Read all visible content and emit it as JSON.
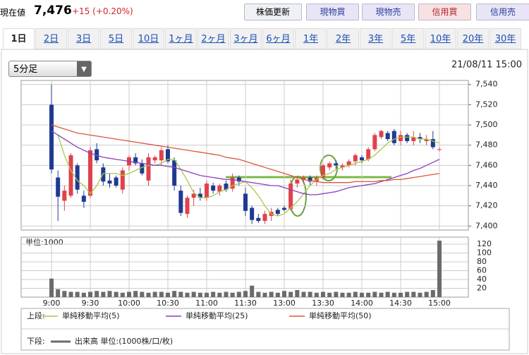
{
  "header": {
    "price_label": "現在値",
    "price": "7,476",
    "change": "+15 (+0.20%)",
    "buttons": [
      "株価更新",
      "現物買",
      "現物売",
      "信用買",
      "信用売"
    ]
  },
  "tabs": [
    "1日",
    "2日",
    "3日",
    "5日",
    "10日",
    "1ヶ月",
    "2ヶ月",
    "3ヶ月",
    "6ヶ月",
    "1年",
    "2年",
    "3年",
    "5年",
    "10年",
    "20年",
    "30年"
  ],
  "interval": "5分足",
  "datetime": "21/08/11 15:00",
  "legend": {
    "upper": "上段:",
    "lower": "下段:"
  },
  "chart_data": [
    {
      "type": "candlestick",
      "categories": [
        "9:00",
        null,
        null,
        null,
        null,
        null,
        "9:30",
        null,
        null,
        null,
        null,
        null,
        "10:00",
        null,
        null,
        null,
        null,
        null,
        "10:30",
        null,
        null,
        null,
        null,
        null,
        "11:00",
        null,
        null,
        null,
        null,
        null,
        "11:30",
        null,
        null,
        null,
        null,
        null,
        "13:00",
        null,
        null,
        null,
        null,
        null,
        "13:30",
        null,
        null,
        null,
        null,
        null,
        "14:00",
        null,
        null,
        null,
        null,
        null,
        "14:30",
        null,
        null,
        null,
        null,
        null,
        "15:00"
      ],
      "open": [
        7520,
        7448,
        7425,
        7430,
        7460,
        7430,
        7430,
        7476,
        7458,
        7445,
        7448,
        7436,
        7460,
        7468,
        7462,
        7445,
        7465,
        7465,
        7476,
        7465,
        7435,
        7412,
        7428,
        7432,
        7428,
        7440,
        7434,
        7442,
        7437,
        7448,
        7432,
        7418,
        7408,
        7405,
        7410,
        7416,
        7418,
        7417,
        7442,
        7446,
        7448,
        7444,
        7448,
        7458,
        7462,
        7458,
        7460,
        7464,
        7468,
        7466,
        7476,
        7488,
        7492,
        7494,
        7484,
        7490,
        7484,
        7488,
        7484,
        7486,
        7476
      ],
      "high": [
        7540,
        7455,
        7440,
        7472,
        7462,
        7435,
        7478,
        7482,
        7462,
        7452,
        7450,
        7458,
        7470,
        7472,
        7466,
        7472,
        7470,
        7478,
        7480,
        7468,
        7440,
        7430,
        7436,
        7438,
        7445,
        7443,
        7442,
        7445,
        7452,
        7450,
        7438,
        7420,
        7412,
        7415,
        7418,
        7418,
        7420,
        7446,
        7448,
        7450,
        7450,
        7450,
        7462,
        7464,
        7465,
        7462,
        7466,
        7472,
        7470,
        7478,
        7492,
        7495,
        7494,
        7496,
        7494,
        7492,
        7494,
        7492,
        7490,
        7494,
        7478
      ],
      "low": [
        7452,
        7405,
        7415,
        7428,
        7432,
        7418,
        7428,
        7462,
        7440,
        7438,
        7438,
        7432,
        7455,
        7460,
        7450,
        7440,
        7462,
        7460,
        7462,
        7435,
        7410,
        7408,
        7420,
        7425,
        7425,
        7432,
        7430,
        7434,
        7434,
        7440,
        7410,
        7402,
        7403,
        7402,
        7405,
        7410,
        7414,
        7415,
        7438,
        7442,
        7440,
        7440,
        7446,
        7455,
        7456,
        7455,
        7458,
        7460,
        7462,
        7464,
        7474,
        7486,
        7484,
        7480,
        7480,
        7482,
        7480,
        7482,
        7480,
        7476,
        7474
      ],
      "close": [
        7456,
        7429,
        7435,
        7470,
        7436,
        7424,
        7475,
        7465,
        7444,
        7442,
        7440,
        7455,
        7468,
        7462,
        7452,
        7468,
        7468,
        7475,
        7464,
        7440,
        7413,
        7428,
        7432,
        7428,
        7442,
        7435,
        7440,
        7436,
        7448,
        7444,
        7415,
        7406,
        7405,
        7412,
        7414,
        7412,
        7416,
        7442,
        7446,
        7448,
        7444,
        7448,
        7460,
        7462,
        7460,
        7460,
        7464,
        7470,
        7465,
        7476,
        7490,
        7494,
        7486,
        7482,
        7490,
        7484,
        7488,
        7486,
        7486,
        7478,
        7476
      ],
      "up_color": "#e0424b",
      "down_color": "#1f3a93",
      "series": [
        {
          "name": "単純移動平均(5)",
          "color": "#a8c94a",
          "values": [
            null,
            7490,
            7470,
            7455,
            7445,
            7440,
            7432,
            7440,
            7452,
            7452,
            7452,
            7450,
            7452,
            7455,
            7458,
            7460,
            7460,
            7462,
            7466,
            7466,
            7456,
            7445,
            7433,
            7428,
            7428,
            7430,
            7434,
            7436,
            7440,
            7442,
            7444,
            7438,
            7430,
            7420,
            7412,
            7410,
            7412,
            7418,
            7424,
            7432,
            7440,
            7446,
            7450,
            7452,
            7456,
            7458,
            7460,
            7462,
            7464,
            7466,
            7470,
            7476,
            7482,
            7486,
            7488,
            7488,
            7488,
            7486,
            7486,
            7484,
            7482
          ]
        },
        {
          "name": "単純移動平均(25)",
          "color": "#8a3fc0",
          "values": [
            7494,
            7490,
            7486,
            7482,
            7478,
            7475,
            7472,
            7470,
            7468,
            7467,
            7466,
            7465,
            7464,
            7463,
            7462,
            7461,
            7460,
            7460,
            7459,
            7458,
            7456,
            7454,
            7452,
            7450,
            7449,
            7448,
            7447,
            7446,
            7446,
            7445,
            7444,
            7443,
            7442,
            7441,
            7440,
            7440,
            7438,
            7436,
            7434,
            7432,
            7431,
            7431,
            7432,
            7433,
            7434,
            7436,
            7438,
            7439,
            7440,
            7441,
            7442,
            7444,
            7446,
            7448,
            7450,
            7452,
            7455,
            7457,
            7460,
            7463,
            7466
          ]
        },
        {
          "name": "単純移動平均(50)",
          "color": "#d9583a",
          "values": [
            7500,
            7498,
            7496,
            7494,
            7492,
            7491,
            7490,
            7489,
            7488,
            7487,
            7486,
            7485,
            7484,
            7483,
            7482,
            7481,
            7480,
            7479,
            7478,
            7477,
            7476,
            7475,
            7474,
            7473,
            7472,
            7471,
            7470,
            7468,
            7467,
            7466,
            7464,
            7462,
            7460,
            7458,
            7456,
            7454,
            7452,
            7450,
            7448,
            7446,
            7445,
            7444,
            7443,
            7443,
            7443,
            7443,
            7443,
            7444,
            7444,
            7444,
            7444,
            7445,
            7445,
            7446,
            7446,
            7447,
            7448,
            7449,
            7450,
            7451,
            7452
          ]
        }
      ],
      "ylim": [
        7396,
        7544
      ],
      "yticks": [
        {
          "value": 7400,
          "label": "7,400"
        },
        {
          "value": 7420,
          "label": "7,420"
        },
        {
          "value": 7440,
          "label": "7,440"
        },
        {
          "value": 7460,
          "label": "7,460"
        },
        {
          "value": 7480,
          "label": "7,480"
        },
        {
          "value": 7500,
          "label": "7,500"
        },
        {
          "value": 7520,
          "label": "7,520"
        },
        {
          "value": 7540,
          "label": "7,540"
        }
      ],
      "grid": true
    },
    {
      "type": "bar",
      "unit_label": "単位:1000",
      "legend_label": "出来高 単位:(1000株/口/枚)",
      "color": "#6b6b6b",
      "values": [
        42,
        18,
        14,
        12,
        12,
        10,
        12,
        14,
        12,
        14,
        12,
        10,
        12,
        14,
        12,
        10,
        12,
        12,
        10,
        14,
        12,
        10,
        12,
        10,
        10,
        12,
        10,
        12,
        10,
        12,
        14,
        26,
        12,
        10,
        12,
        10,
        14,
        12,
        16,
        12,
        12,
        10,
        12,
        10,
        12,
        10,
        10,
        12,
        10,
        10,
        12,
        10,
        12,
        10,
        10,
        12,
        12,
        10,
        12,
        16,
        128
      ],
      "ylim": [
        0,
        136
      ],
      "yticks": [
        20,
        40,
        60,
        80,
        100,
        120
      ],
      "grid": true
    }
  ]
}
